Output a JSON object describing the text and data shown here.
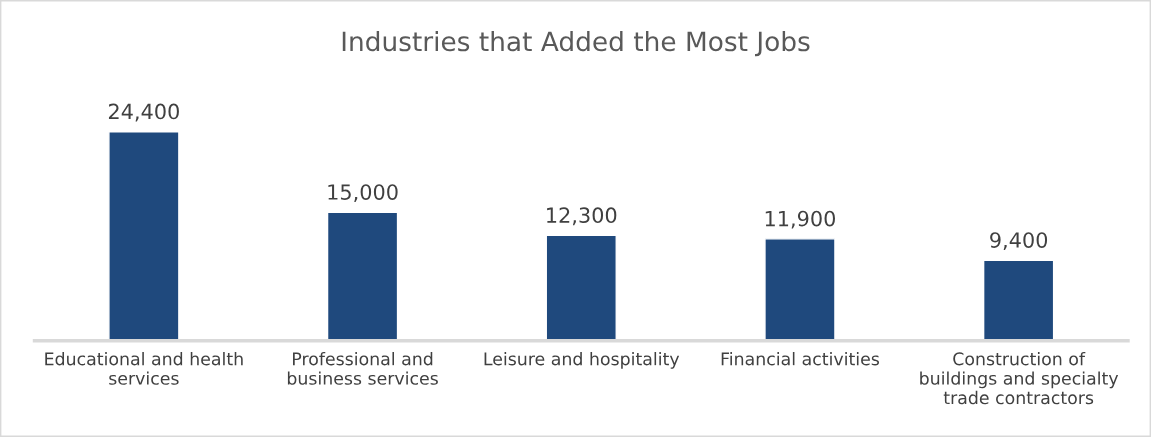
{
  "chart_data": {
    "type": "bar",
    "title": "Industries that Added the Most Jobs",
    "categories": [
      "Educational and health services",
      "Professional and business services",
      "Leisure and hospitality",
      "Financial activities",
      "Construction of buildings and specialty trade contractors"
    ],
    "values": [
      24400,
      15000,
      12300,
      11900,
      9400
    ],
    "value_labels": [
      "24,400",
      "15,000",
      "12,300",
      "11,900",
      "9,400"
    ],
    "color": "#1f497d",
    "grid": false,
    "legend": false
  }
}
